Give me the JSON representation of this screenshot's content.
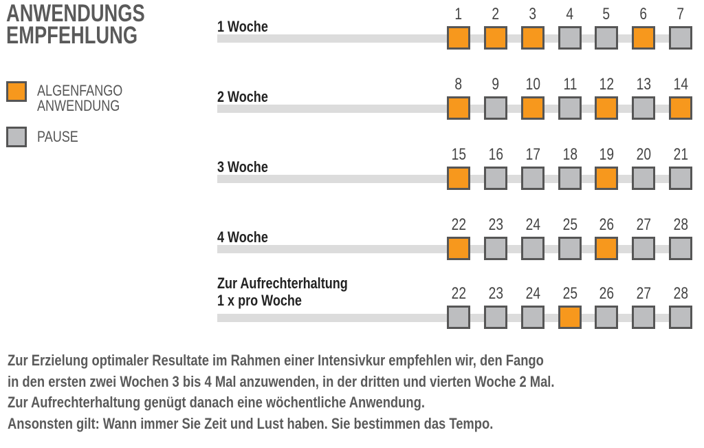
{
  "title": [
    "ANWENDUNGS",
    "EMPFEHLUNG"
  ],
  "colors": {
    "application": "#f7981d",
    "pause": "#bdbec0",
    "border": "#565656",
    "bar": "#dcdcdc"
  },
  "legend": [
    {
      "label1": "ALGENFANGO",
      "label2": "ANWENDUNG",
      "type": "application"
    },
    {
      "label1": "PAUSE",
      "label2": "",
      "type": "pause"
    }
  ],
  "rows": [
    {
      "label1": "1 Woche",
      "label2": "",
      "days": [
        1,
        2,
        3,
        4,
        5,
        6,
        7
      ],
      "active": [
        true,
        true,
        true,
        false,
        false,
        true,
        false
      ]
    },
    {
      "label1": "2 Woche",
      "label2": "",
      "days": [
        8,
        9,
        10,
        11,
        12,
        13,
        14
      ],
      "active": [
        true,
        false,
        true,
        false,
        true,
        false,
        true
      ]
    },
    {
      "label1": "3 Woche",
      "label2": "",
      "days": [
        15,
        16,
        17,
        18,
        19,
        20,
        21
      ],
      "active": [
        true,
        false,
        false,
        false,
        true,
        false,
        false
      ]
    },
    {
      "label1": "4 Woche",
      "label2": "",
      "days": [
        22,
        23,
        24,
        25,
        26,
        27,
        28
      ],
      "active": [
        true,
        false,
        false,
        false,
        true,
        false,
        false
      ]
    },
    {
      "label1": "Zur Aufrechterhaltung",
      "label2": "1 x pro Woche",
      "days": [
        22,
        23,
        24,
        25,
        26,
        27,
        28
      ],
      "active": [
        false,
        false,
        false,
        true,
        false,
        false,
        false
      ]
    }
  ],
  "paragraph": [
    "Zur Erzielung optimaler Resultate im Rahmen einer Intensivkur empfehlen wir, den Fango",
    "in den ersten zwei Wochen 3 bis 4 Mal anzuwenden, in der dritten und vierten Woche 2 Mal.",
    "Zur Aufrechterhaltung genügt danach eine wöchentliche Anwendung.",
    "Ansonsten gilt: Wann immer Sie Zeit und Lust haben. Sie bestimmen das Tempo."
  ]
}
